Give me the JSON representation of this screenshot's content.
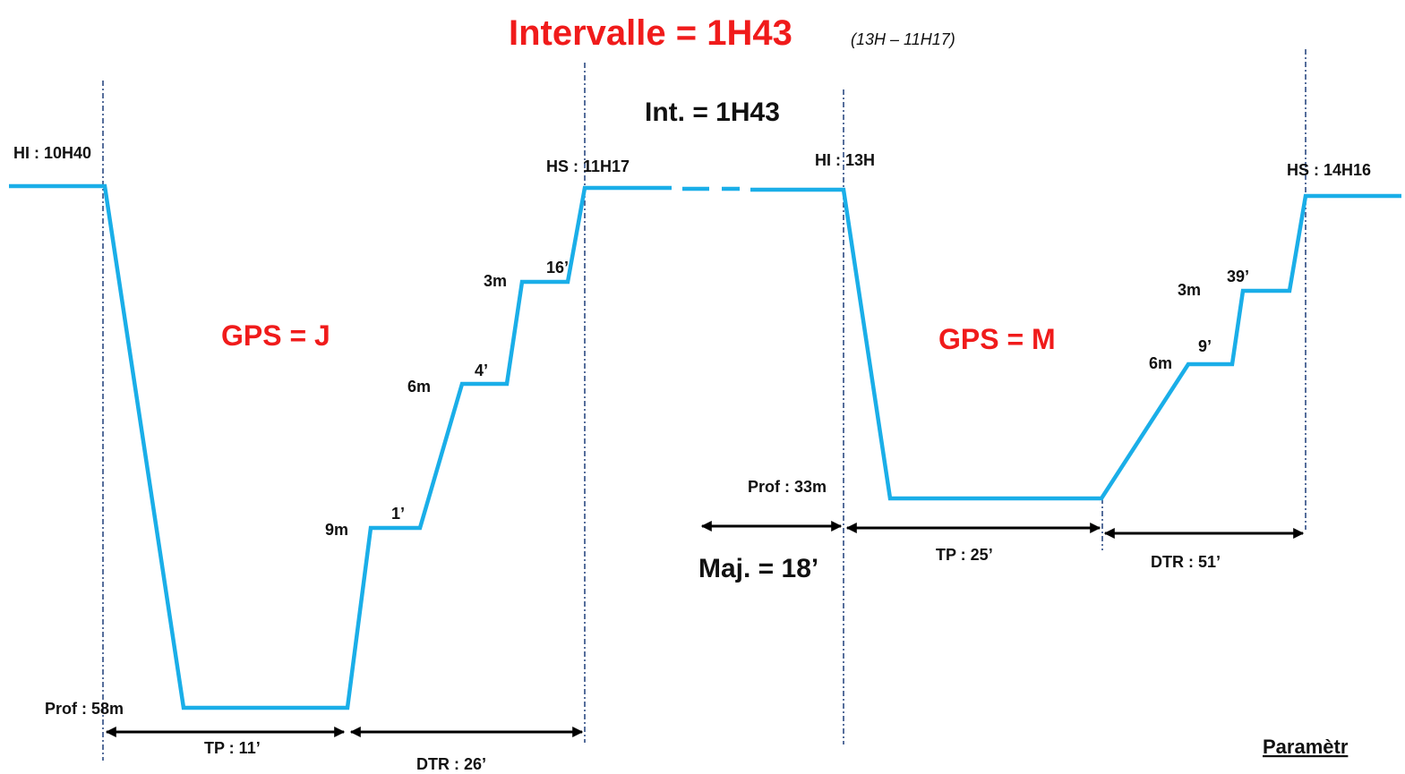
{
  "header": {
    "title": "Intervalle = 1H43",
    "subtitle": "(13H – 11H17)"
  },
  "interval": "Int. = 1H43",
  "dive1": {
    "start": "HI : 10H40",
    "end": "HS : 11H17",
    "gps": "GPS = J",
    "depth": "Prof : 58m",
    "tp": "TP : 11’",
    "dtr": "DTR : 26’",
    "stops": [
      {
        "depth": "9m",
        "time": "1’"
      },
      {
        "depth": "6m",
        "time": "4’"
      },
      {
        "depth": "3m",
        "time": "16’"
      }
    ]
  },
  "dive2": {
    "start": "HI : 13H",
    "end": "HS : 14H16",
    "gps": "GPS = M",
    "depth": "Prof : 33m",
    "majoration": "Maj. = 18’",
    "tp": "TP : 25’",
    "dtr": "DTR : 51’",
    "stops": [
      {
        "depth": "6m",
        "time": "9’"
      },
      {
        "depth": "3m",
        "time": "39’"
      }
    ]
  },
  "footer": "Paramètr"
}
